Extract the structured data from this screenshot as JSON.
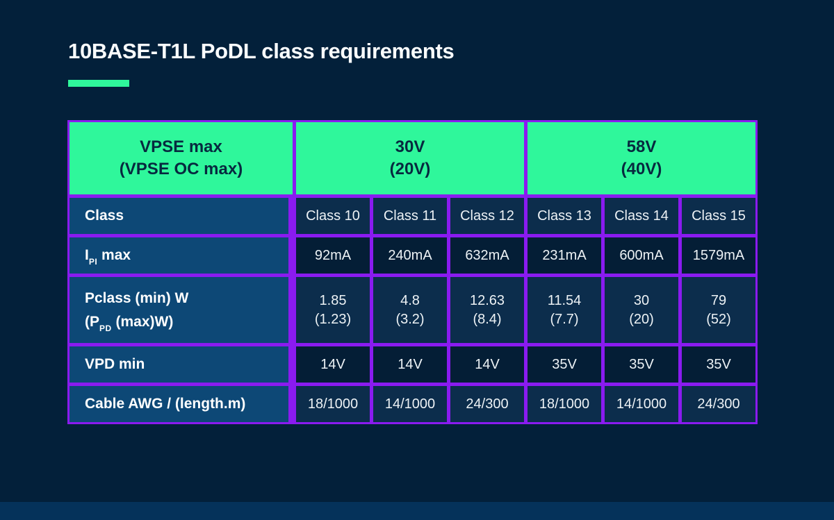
{
  "title": "10BASE-T1L PoDL class requirements",
  "colors": {
    "background": "#03203A",
    "accent_green": "#2FF79B",
    "border_purple": "#8A1BF0",
    "label_cell_blue": "#0D4876",
    "data_cell_navy_light": "#0C2D4C",
    "data_cell_navy_dark": "#041E36",
    "header_text_navy": "#07293F",
    "footer_strip_blue": "#05325A"
  },
  "table": {
    "corner_header": {
      "line1": "VPSE max",
      "line2": "(VPSE OC max)"
    },
    "voltage_groups": [
      {
        "line1": "30V",
        "line2": "(20V)"
      },
      {
        "line1": "58V",
        "line2": "(40V)"
      }
    ],
    "rows": {
      "class": {
        "label": "Class",
        "cells": [
          "Class 10",
          "Class 11",
          "Class 12",
          "Class 13",
          "Class 14",
          "Class 15"
        ]
      },
      "ipi_max": {
        "label_pre": "I",
        "label_sub": "PI",
        "label_post": " max",
        "cells": [
          "92mA",
          "240mA",
          "632mA",
          "231mA",
          "600mA",
          "1579mA"
        ]
      },
      "pclass": {
        "label_line1": "Pclass (min) W",
        "label_line2_pre": "(P",
        "label_line2_sub": "PD",
        "label_line2_post": " (max)W)",
        "cells": [
          [
            "1.85",
            "(1.23)"
          ],
          [
            "4.8",
            "(3.2)"
          ],
          [
            "12.63",
            "(8.4)"
          ],
          [
            "11.54",
            "(7.7)"
          ],
          [
            "30",
            "(20)"
          ],
          [
            "79",
            "(52)"
          ]
        ]
      },
      "vpd_min": {
        "label": "VPD min",
        "cells": [
          "14V",
          "14V",
          "14V",
          "35V",
          "35V",
          "35V"
        ]
      },
      "cable": {
        "label": "Cable AWG / (length.m)",
        "cells": [
          "18/1000",
          "14/1000",
          "24/300",
          "18/1000",
          "14/1000",
          "24/300"
        ]
      }
    }
  },
  "chart_data": {
    "type": "table",
    "title": "10BASE-T1L PoDL class requirements",
    "columns": [
      "Class 10",
      "Class 11",
      "Class 12",
      "Class 13",
      "Class 14",
      "Class 15"
    ],
    "vpse_max_vpse_oc_max_by_column": [
      "30V (20V)",
      "30V (20V)",
      "30V (20V)",
      "58V (40V)",
      "58V (40V)",
      "58V (40V)"
    ],
    "rows": [
      {
        "label": "IPI max",
        "values": [
          "92mA",
          "240mA",
          "632mA",
          "231mA",
          "600mA",
          "1579mA"
        ]
      },
      {
        "label": "Pclass (min) W (PPD (max)W)",
        "values": [
          "1.85 (1.23)",
          "4.8 (3.2)",
          "12.63 (8.4)",
          "11.54 (7.7)",
          "30 (20)",
          "79 (52)"
        ]
      },
      {
        "label": "VPD min",
        "values": [
          "14V",
          "14V",
          "14V",
          "35V",
          "35V",
          "35V"
        ]
      },
      {
        "label": "Cable AWG / (length.m)",
        "values": [
          "18/1000",
          "14/1000",
          "24/300",
          "18/1000",
          "14/1000",
          "24/300"
        ]
      }
    ]
  }
}
